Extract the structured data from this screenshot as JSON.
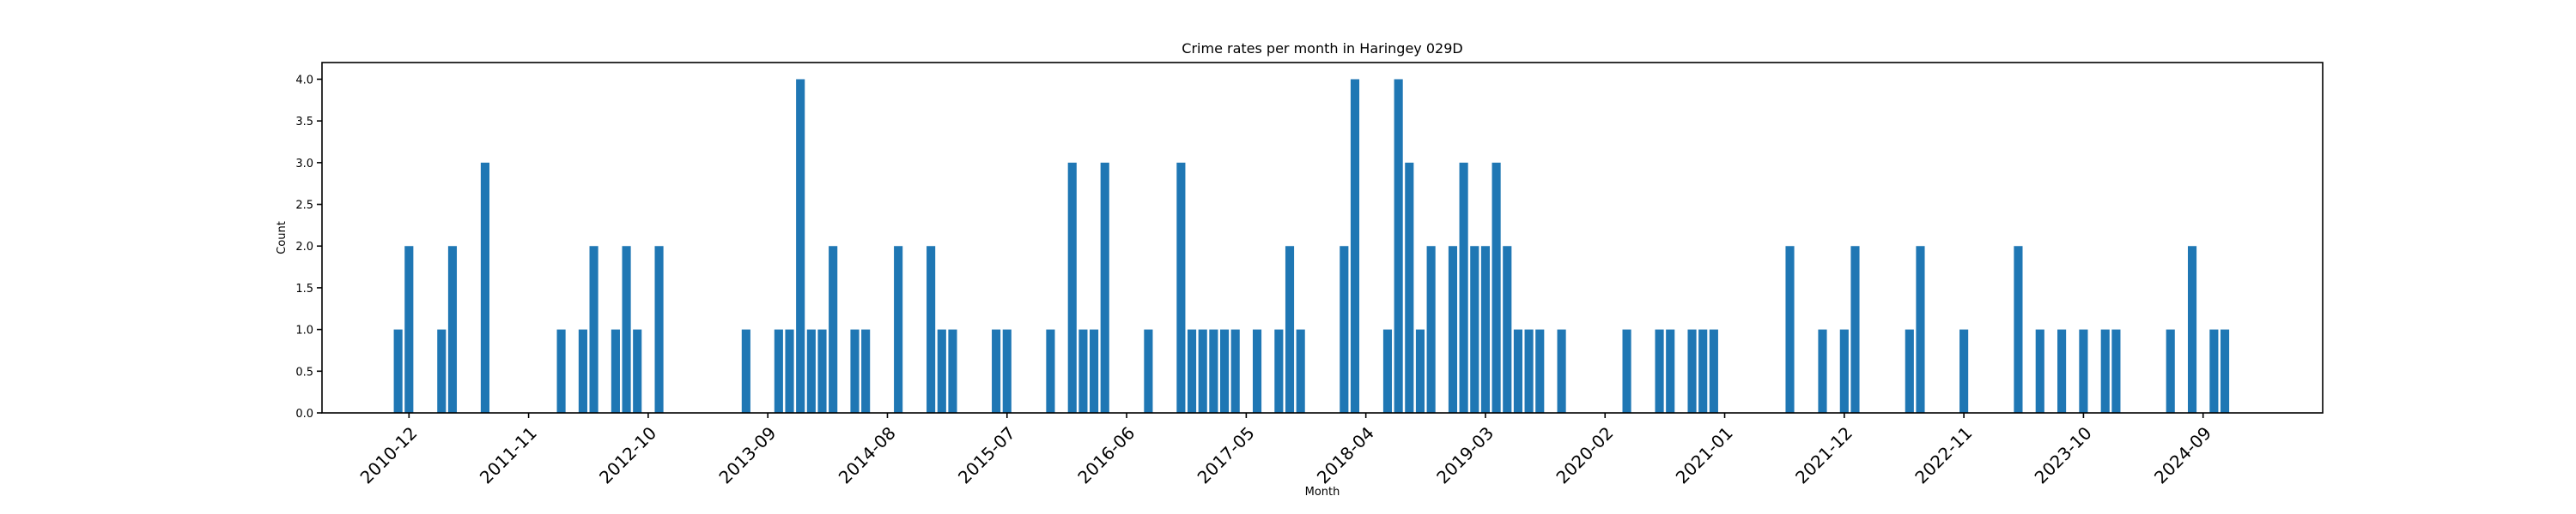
{
  "chart_data": {
    "type": "bar",
    "title": "Crime rates per month in Haringey 029D",
    "xlabel": "Month",
    "ylabel": "Count",
    "color": "#1f77b4",
    "ylim": [
      0,
      4.2
    ],
    "grid": false,
    "legend": "none",
    "x_range": [
      "2010-04",
      "2025-08"
    ],
    "yticks": [
      0.0,
      0.5,
      1.0,
      1.5,
      2.0,
      2.5,
      3.0,
      3.5,
      4.0
    ],
    "ytick_labels": [
      "0.0",
      "0.5",
      "1.0",
      "1.5",
      "2.0",
      "2.5",
      "3.0",
      "3.5",
      "4.0"
    ],
    "xticks": [
      "2010-12",
      "2011-11",
      "2012-10",
      "2013-09",
      "2014-08",
      "2015-07",
      "2016-06",
      "2017-05",
      "2018-04",
      "2019-03",
      "2020-02",
      "2021-01",
      "2021-12",
      "2022-11",
      "2023-10",
      "2024-09"
    ],
    "categories": [
      "2010-11",
      "2010-12",
      "2011-03",
      "2011-04",
      "2011-07",
      "2012-02",
      "2012-04",
      "2012-05",
      "2012-07",
      "2012-08",
      "2012-09",
      "2012-11",
      "2013-07",
      "2013-10",
      "2013-11",
      "2013-12",
      "2014-01",
      "2014-02",
      "2014-03",
      "2014-05",
      "2014-06",
      "2014-09",
      "2014-12",
      "2015-01",
      "2015-02",
      "2015-06",
      "2015-07",
      "2015-11",
      "2016-01",
      "2016-02",
      "2016-03",
      "2016-04",
      "2016-08",
      "2016-11",
      "2016-12",
      "2017-01",
      "2017-02",
      "2017-03",
      "2017-04",
      "2017-06",
      "2017-08",
      "2017-09",
      "2017-10",
      "2018-02",
      "2018-03",
      "2018-06",
      "2018-07",
      "2018-08",
      "2018-09",
      "2018-10",
      "2018-12",
      "2019-01",
      "2019-02",
      "2019-03",
      "2019-04",
      "2019-05",
      "2019-06",
      "2019-07",
      "2019-08",
      "2019-10",
      "2020-04",
      "2020-07",
      "2020-08",
      "2020-10",
      "2020-11",
      "2020-12",
      "2021-07",
      "2021-10",
      "2021-12",
      "2022-01",
      "2022-06",
      "2022-07",
      "2022-11",
      "2023-04",
      "2023-06",
      "2023-08",
      "2023-10",
      "2023-12",
      "2024-01",
      "2024-06",
      "2024-08",
      "2024-10",
      "2024-11"
    ],
    "values": [
      1,
      2,
      1,
      2,
      3,
      1,
      1,
      2,
      1,
      2,
      1,
      2,
      1,
      1,
      1,
      4,
      1,
      1,
      2,
      1,
      1,
      2,
      2,
      1,
      1,
      1,
      1,
      1,
      3,
      1,
      1,
      3,
      1,
      3,
      1,
      1,
      1,
      1,
      1,
      1,
      1,
      2,
      1,
      2,
      4,
      1,
      4,
      3,
      1,
      2,
      2,
      3,
      2,
      2,
      3,
      2,
      1,
      1,
      1,
      1,
      1,
      1,
      1,
      1,
      1,
      1,
      2,
      1,
      1,
      2,
      1,
      2,
      1,
      2,
      1,
      1,
      1,
      1,
      1,
      1,
      2,
      1,
      1
    ]
  }
}
